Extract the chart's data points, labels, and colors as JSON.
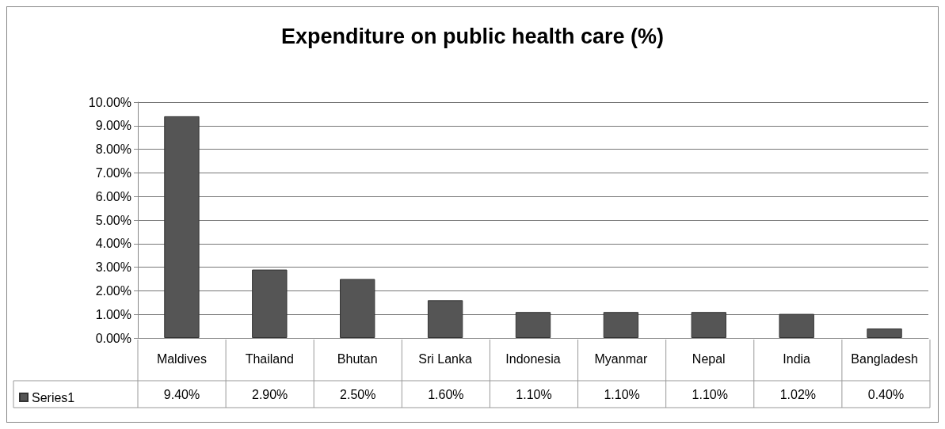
{
  "chart_data": {
    "type": "bar",
    "title": "Expenditure on public health care (%)",
    "categories": [
      "Maldives",
      "Thailand",
      "Bhutan",
      "Sri Lanka",
      "Indonesia",
      "Myanmar",
      "Nepal",
      "India",
      "Bangladesh"
    ],
    "series": [
      {
        "name": "Series1",
        "color": "#555555",
        "values": [
          9.4,
          2.9,
          2.5,
          1.6,
          1.1,
          1.1,
          1.1,
          1.02,
          0.4
        ],
        "value_labels": [
          "9.40%",
          "2.90%",
          "2.50%",
          "1.60%",
          "1.10%",
          "1.10%",
          "1.10%",
          "1.02%",
          "0.40%"
        ]
      }
    ],
    "ylim": [
      0,
      10
    ],
    "yticks": [
      {
        "value": 0,
        "label": "0.00%"
      },
      {
        "value": 1,
        "label": "1.00%"
      },
      {
        "value": 2,
        "label": "2.00%"
      },
      {
        "value": 3,
        "label": "3.00%"
      },
      {
        "value": 4,
        "label": "4.00%"
      },
      {
        "value": 5,
        "label": "5.00%"
      },
      {
        "value": 6,
        "label": "6.00%"
      },
      {
        "value": 7,
        "label": "7.00%"
      },
      {
        "value": 8,
        "label": "8.00%"
      },
      {
        "value": 9,
        "label": "9.00%"
      },
      {
        "value": 10,
        "label": "10.00%"
      }
    ],
    "grid": "y",
    "legend": "bottom left"
  }
}
